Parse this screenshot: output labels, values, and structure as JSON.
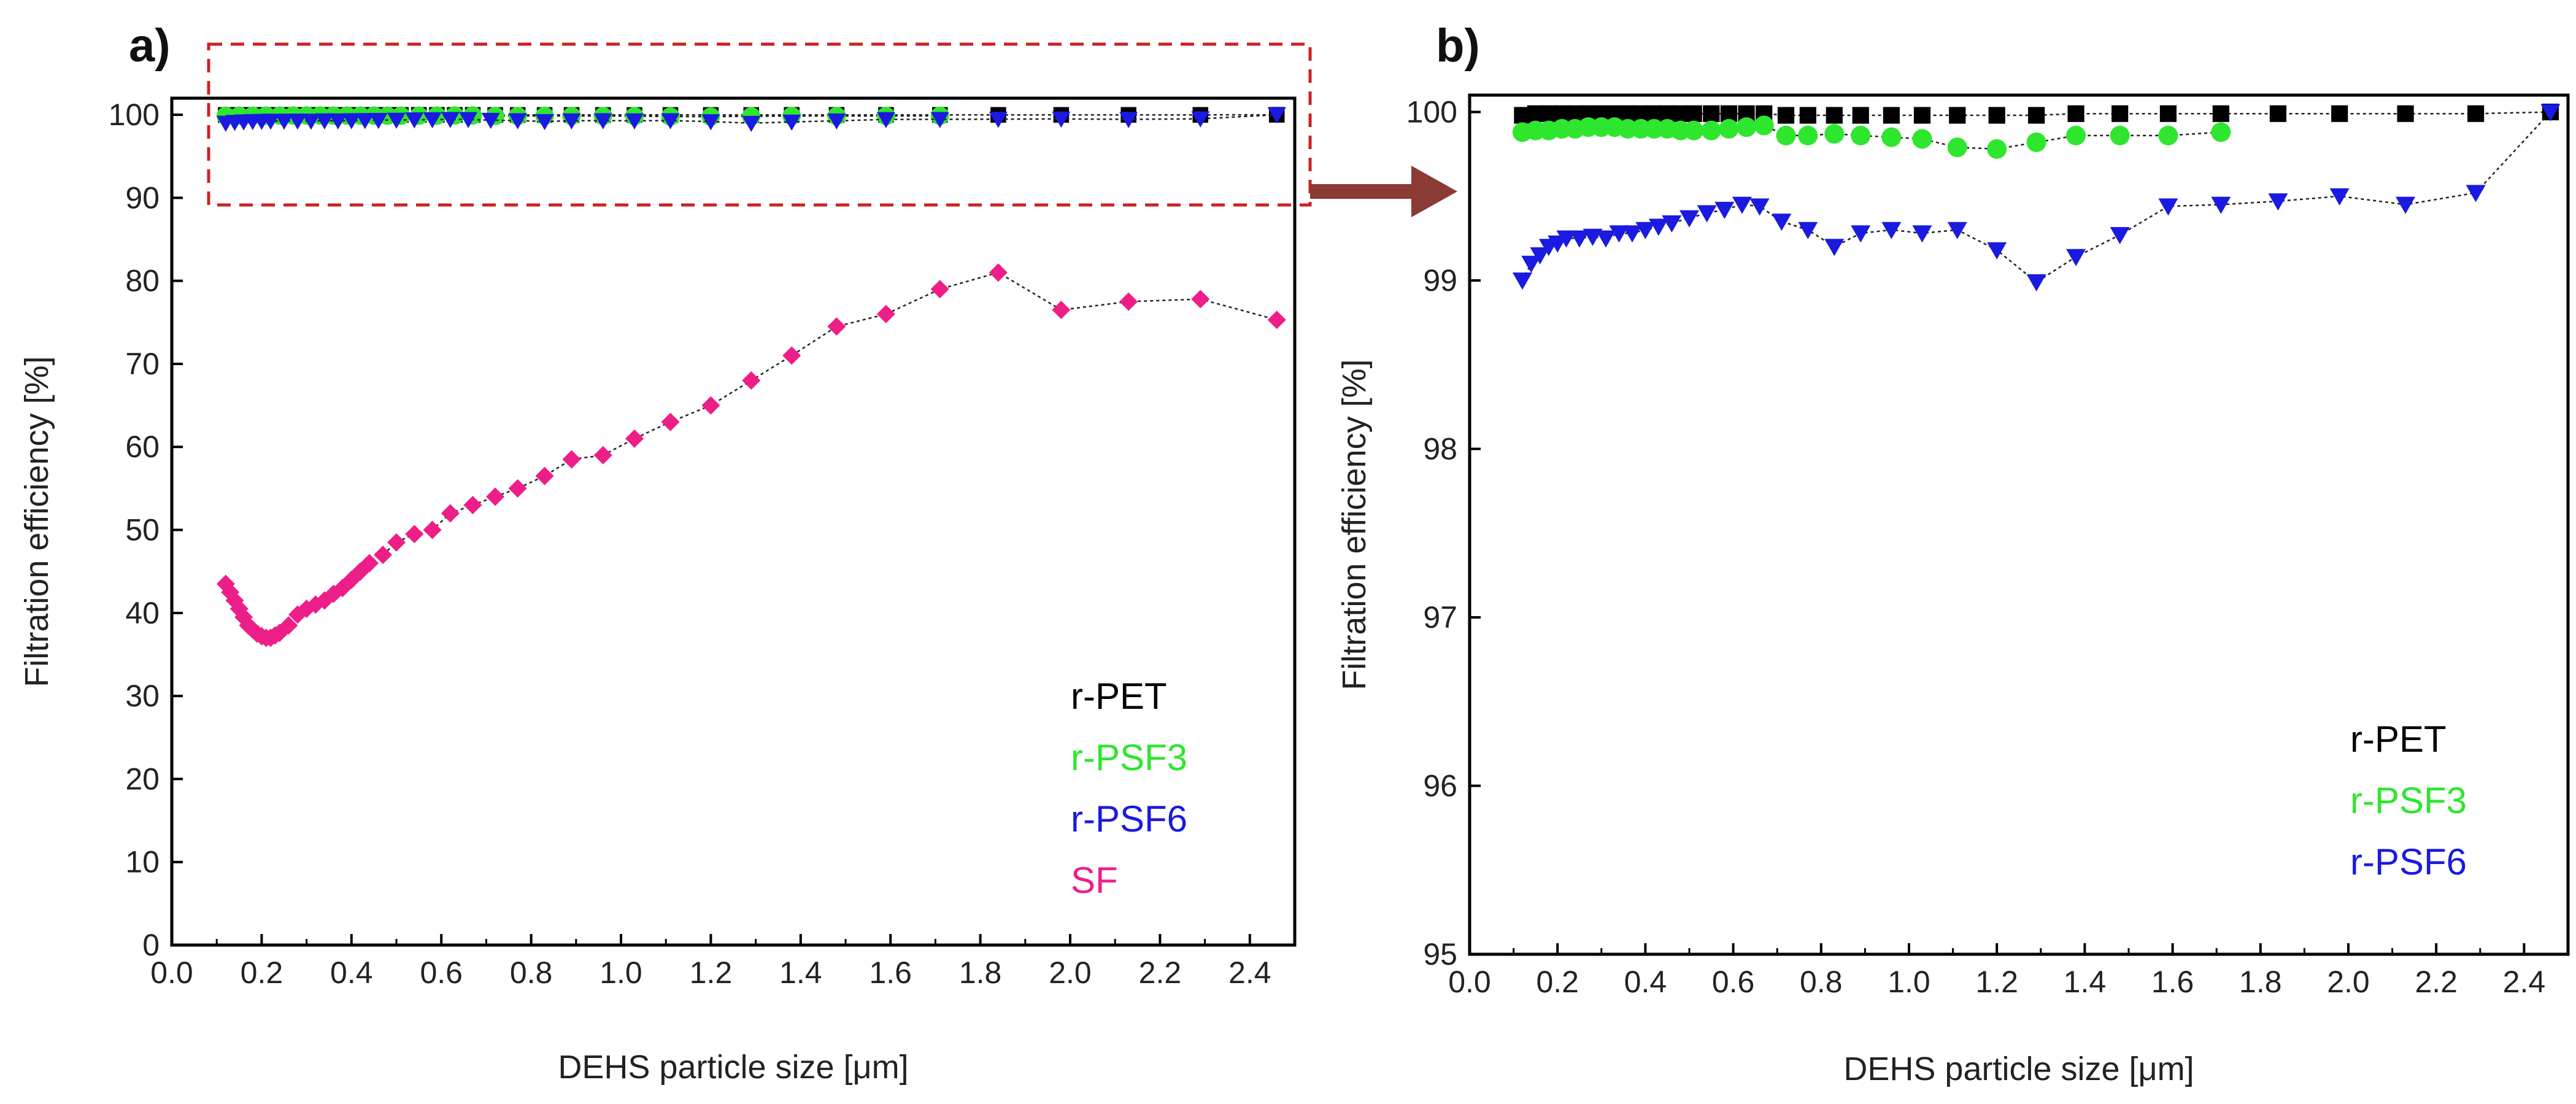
{
  "colors": {
    "r_pet": "#000000",
    "r_psf3": "#2ee62e",
    "r_psf6": "#1a1ae0",
    "sf": "#ee1e88",
    "highlight_box": "#cc2222",
    "arrow": "#8b3a35"
  },
  "chart_data": [
    {
      "type": "scatter",
      "panel_label": "a)",
      "xlabel": "DEHS particle size [μm]",
      "ylabel": "Filtration efficiency [%]",
      "xlim": [
        0.0,
        2.5
      ],
      "ylim": [
        0,
        102
      ],
      "xticks": [
        "0.0",
        "0.2",
        "0.4",
        "0.6",
        "0.8",
        "1.0",
        "1.2",
        "1.4",
        "1.6",
        "1.8",
        "2.0",
        "2.2",
        "2.4"
      ],
      "yticks": [
        "0",
        "10",
        "20",
        "30",
        "40",
        "50",
        "60",
        "70",
        "80",
        "90",
        "100"
      ],
      "highlight_region": {
        "x": [
          0.1,
          2.5
        ],
        "y": [
          90,
          102
        ]
      },
      "legend": [
        "r-PET",
        "r-PSF3",
        "r-PSF6",
        "SF"
      ],
      "series": [
        {
          "name": "r-PET",
          "marker": "square",
          "x": [
            0.12,
            0.15,
            0.18,
            0.21,
            0.24,
            0.27,
            0.3,
            0.33,
            0.36,
            0.39,
            0.42,
            0.45,
            0.48,
            0.51,
            0.55,
            0.59,
            0.63,
            0.67,
            0.72,
            0.77,
            0.83,
            0.89,
            0.96,
            1.03,
            1.11,
            1.2,
            1.29,
            1.38,
            1.48,
            1.59,
            1.71,
            1.84,
            1.98,
            2.13,
            2.29,
            2.46
          ],
          "y": [
            99.98,
            99.99,
            99.99,
            99.99,
            99.99,
            99.99,
            99.99,
            99.99,
            99.99,
            99.99,
            99.99,
            99.99,
            99.99,
            99.99,
            99.99,
            99.99,
            99.99,
            99.99,
            99.98,
            99.98,
            99.98,
            99.98,
            99.98,
            99.98,
            99.98,
            99.98,
            99.98,
            99.99,
            99.99,
            99.99,
            99.99,
            99.99,
            99.99,
            99.99,
            99.99,
            100.0
          ]
        },
        {
          "name": "r-PSF3",
          "marker": "circle",
          "x": [
            0.12,
            0.15,
            0.18,
            0.21,
            0.24,
            0.27,
            0.3,
            0.33,
            0.36,
            0.39,
            0.42,
            0.45,
            0.48,
            0.51,
            0.55,
            0.59,
            0.63,
            0.67,
            0.72,
            0.77,
            0.83,
            0.89,
            0.96,
            1.03,
            1.11,
            1.2,
            1.29,
            1.38,
            1.48,
            1.59,
            1.71
          ],
          "y": [
            99.88,
            99.89,
            99.89,
            99.9,
            99.9,
            99.91,
            99.91,
            99.91,
            99.9,
            99.9,
            99.9,
            99.9,
            99.89,
            99.89,
            99.89,
            99.9,
            99.91,
            99.92,
            99.86,
            99.86,
            99.87,
            99.86,
            99.85,
            99.84,
            99.79,
            99.78,
            99.82,
            99.86,
            99.86,
            99.86,
            99.88
          ]
        },
        {
          "name": "r-PSF6",
          "marker": "triangle-down",
          "x": [
            0.12,
            0.14,
            0.16,
            0.18,
            0.2,
            0.22,
            0.25,
            0.28,
            0.31,
            0.34,
            0.37,
            0.4,
            0.43,
            0.46,
            0.5,
            0.54,
            0.58,
            0.62,
            0.66,
            0.71,
            0.77,
            0.83,
            0.89,
            0.96,
            1.03,
            1.11,
            1.2,
            1.29,
            1.38,
            1.48,
            1.59,
            1.71,
            1.84,
            1.98,
            2.13,
            2.29,
            2.46
          ],
          "y": [
            99.0,
            99.1,
            99.15,
            99.2,
            99.22,
            99.25,
            99.25,
            99.26,
            99.25,
            99.28,
            99.28,
            99.3,
            99.32,
            99.34,
            99.37,
            99.4,
            99.42,
            99.45,
            99.44,
            99.35,
            99.3,
            99.2,
            99.28,
            99.3,
            99.28,
            99.3,
            99.18,
            98.99,
            99.14,
            99.27,
            99.44,
            99.45,
            99.47,
            99.5,
            99.45,
            99.52,
            100.0
          ]
        },
        {
          "name": "SF",
          "marker": "diamond",
          "x": [
            0.12,
            0.13,
            0.14,
            0.15,
            0.16,
            0.17,
            0.18,
            0.19,
            0.2,
            0.21,
            0.22,
            0.23,
            0.24,
            0.26,
            0.28,
            0.3,
            0.32,
            0.34,
            0.36,
            0.38,
            0.4,
            0.42,
            0.44,
            0.47,
            0.5,
            0.54,
            0.58,
            0.62,
            0.67,
            0.72,
            0.77,
            0.83,
            0.89,
            0.96,
            1.03,
            1.11,
            1.2,
            1.29,
            1.38,
            1.48,
            1.59,
            1.71,
            1.84,
            1.98,
            2.13,
            2.29,
            2.46
          ],
          "y": [
            43.5,
            42.5,
            41.5,
            40.5,
            39.5,
            38.5,
            38.0,
            37.5,
            37.2,
            37.0,
            37.0,
            37.3,
            37.6,
            38.5,
            39.8,
            40.5,
            41.0,
            41.5,
            42.3,
            43.0,
            44.0,
            45.0,
            46.0,
            47.0,
            48.5,
            49.5,
            50.0,
            52.0,
            53.0,
            54.0,
            55.0,
            56.5,
            58.5,
            59.0,
            61.0,
            63.0,
            65.0,
            68.0,
            71.0,
            74.5,
            76.0,
            79.0,
            81.0,
            76.5,
            77.5,
            77.8,
            75.3
          ]
        }
      ]
    },
    {
      "type": "scatter",
      "panel_label": "b)",
      "xlabel": "DEHS particle size [μm]",
      "ylabel": "Filtration efficiency [%]",
      "xlim": [
        0.0,
        2.5
      ],
      "ylim": [
        95,
        100.1
      ],
      "xticks": [
        "0.0",
        "0.2",
        "0.4",
        "0.6",
        "0.8",
        "1.0",
        "1.2",
        "1.4",
        "1.6",
        "1.8",
        "2.0",
        "2.2",
        "2.4"
      ],
      "yticks": [
        "95",
        "96",
        "97",
        "98",
        "99",
        "100"
      ],
      "legend": [
        "r-PET",
        "r-PSF3",
        "r-PSF6"
      ],
      "series": [
        {
          "name": "r-PET",
          "marker": "square",
          "x": [
            0.12,
            0.15,
            0.18,
            0.21,
            0.24,
            0.27,
            0.3,
            0.33,
            0.36,
            0.39,
            0.42,
            0.45,
            0.48,
            0.51,
            0.55,
            0.59,
            0.63,
            0.67,
            0.72,
            0.77,
            0.83,
            0.89,
            0.96,
            1.03,
            1.11,
            1.2,
            1.29,
            1.38,
            1.48,
            1.59,
            1.71,
            1.84,
            1.98,
            2.13,
            2.29,
            2.46
          ],
          "y": [
            99.98,
            99.99,
            99.99,
            99.99,
            99.99,
            99.99,
            99.99,
            99.99,
            99.99,
            99.99,
            99.99,
            99.99,
            99.99,
            99.99,
            99.99,
            99.99,
            99.99,
            99.99,
            99.98,
            99.98,
            99.98,
            99.98,
            99.98,
            99.98,
            99.98,
            99.98,
            99.98,
            99.99,
            99.99,
            99.99,
            99.99,
            99.99,
            99.99,
            99.99,
            99.99,
            100.0
          ]
        },
        {
          "name": "r-PSF3",
          "marker": "circle",
          "x": [
            0.12,
            0.15,
            0.18,
            0.21,
            0.24,
            0.27,
            0.3,
            0.33,
            0.36,
            0.39,
            0.42,
            0.45,
            0.48,
            0.51,
            0.55,
            0.59,
            0.63,
            0.67,
            0.72,
            0.77,
            0.83,
            0.89,
            0.96,
            1.03,
            1.11,
            1.2,
            1.29,
            1.38,
            1.48,
            1.59,
            1.71
          ],
          "y": [
            99.88,
            99.89,
            99.89,
            99.9,
            99.9,
            99.91,
            99.91,
            99.91,
            99.9,
            99.9,
            99.9,
            99.9,
            99.89,
            99.89,
            99.89,
            99.9,
            99.91,
            99.92,
            99.86,
            99.86,
            99.87,
            99.86,
            99.85,
            99.84,
            99.79,
            99.78,
            99.82,
            99.86,
            99.86,
            99.86,
            99.88
          ]
        },
        {
          "name": "r-PSF6",
          "marker": "triangle-down",
          "x": [
            0.12,
            0.14,
            0.16,
            0.18,
            0.2,
            0.22,
            0.25,
            0.28,
            0.31,
            0.34,
            0.37,
            0.4,
            0.43,
            0.46,
            0.5,
            0.54,
            0.58,
            0.62,
            0.66,
            0.71,
            0.77,
            0.83,
            0.89,
            0.96,
            1.03,
            1.11,
            1.2,
            1.29,
            1.38,
            1.48,
            1.59,
            1.71,
            1.84,
            1.98,
            2.13,
            2.29,
            2.46
          ],
          "y": [
            99.0,
            99.1,
            99.15,
            99.2,
            99.22,
            99.25,
            99.25,
            99.26,
            99.25,
            99.28,
            99.28,
            99.3,
            99.32,
            99.34,
            99.37,
            99.4,
            99.42,
            99.45,
            99.44,
            99.35,
            99.3,
            99.2,
            99.28,
            99.3,
            99.28,
            99.3,
            99.18,
            98.99,
            99.14,
            99.27,
            99.44,
            99.45,
            99.47,
            99.5,
            99.45,
            99.52,
            100.0
          ]
        }
      ]
    }
  ]
}
